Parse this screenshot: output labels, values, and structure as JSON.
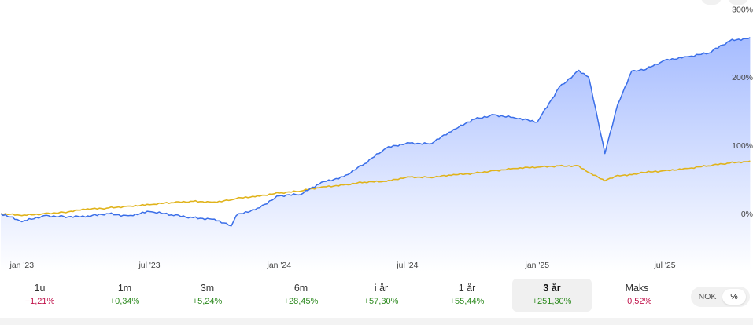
{
  "chart_data": {
    "type": "line",
    "x": [
      "2022-12-02",
      "2023-01-01",
      "2023-02-01",
      "2023-03-01",
      "2023-04-01",
      "2023-05-01",
      "2023-06-01",
      "2023-07-01",
      "2023-08-01",
      "2023-09-01",
      "2023-10-01",
      "2023-10-25",
      "2023-11-01",
      "2023-12-01",
      "2024-01-01",
      "2024-02-01",
      "2024-03-01",
      "2024-04-01",
      "2024-05-01",
      "2024-06-01",
      "2024-07-01",
      "2024-08-01",
      "2024-09-01",
      "2024-10-01",
      "2024-11-01",
      "2024-12-01",
      "2025-01-01",
      "2025-02-01",
      "2025-03-01",
      "2025-03-15",
      "2025-04-07",
      "2025-04-25",
      "2025-05-15",
      "2025-06-01",
      "2025-07-01",
      "2025-08-01",
      "2025-09-01",
      "2025-10-01",
      "2025-10-30"
    ],
    "series": [
      {
        "values": [
          0,
          -12,
          -3,
          -4,
          -5,
          0,
          -3,
          3,
          -2,
          -6,
          -8,
          -18,
          -3,
          8,
          26,
          28,
          46,
          54,
          73,
          96,
          104,
          102,
          120,
          138,
          145,
          140,
          134,
          185,
          210,
          200,
          88,
          160,
          209,
          210,
          225,
          230,
          235,
          253,
          258
        ]
      },
      {
        "values": [
          0,
          -3,
          0,
          2,
          6,
          8,
          11,
          13,
          16,
          18,
          17,
          20,
          22,
          26,
          30,
          33,
          39,
          42,
          46,
          47,
          54,
          53,
          56,
          59,
          63,
          66,
          68,
          70,
          70,
          60,
          48,
          56,
          57,
          60,
          63,
          66,
          70,
          74,
          77
        ]
      }
    ],
    "y_ticks": [
      "300%",
      "200%",
      "100%",
      "0%"
    ],
    "y_tick_values": [
      300,
      200,
      100,
      0
    ],
    "ylim": [
      -85,
      313
    ],
    "x_ticks": [
      "jan '23",
      "jul '23",
      "jan '24",
      "jul '24",
      "jan '25",
      "jul '25"
    ],
    "x_tick_dates": [
      "2023-01-01",
      "2023-07-01",
      "2024-01-01",
      "2024-07-01",
      "2025-01-01",
      "2025-07-01"
    ],
    "xlim": [
      "2022-12-01",
      "2025-11-03"
    ],
    "grid": false,
    "colors": {
      "primary_line": "#3a6ee8",
      "primary_fill_top": "#a6bcff",
      "primary_fill_bottom": "#ffffff",
      "benchmark_line": "#e0b31b"
    }
  },
  "periods": [
    {
      "label": "1u",
      "change": "−1,21%",
      "sign": "neg",
      "active": false
    },
    {
      "label": "1m",
      "change": "+0,34%",
      "sign": "pos",
      "active": false
    },
    {
      "label": "3m",
      "change": "+5,24%",
      "sign": "pos",
      "active": false
    },
    {
      "label": "6m",
      "change": "+28,45%",
      "sign": "pos",
      "active": false
    },
    {
      "label": "i år",
      "change": "+57,30%",
      "sign": "pos",
      "active": false
    },
    {
      "label": "1 år",
      "change": "+55,44%",
      "sign": "pos",
      "active": false
    },
    {
      "label": "3 år",
      "change": "+251,30%",
      "sign": "pos",
      "active": true
    },
    {
      "label": "Maks",
      "change": "−0,52%",
      "sign": "neg",
      "active": false
    }
  ],
  "unit_toggle": {
    "options": [
      "NOK",
      "%"
    ],
    "selected": "%"
  }
}
